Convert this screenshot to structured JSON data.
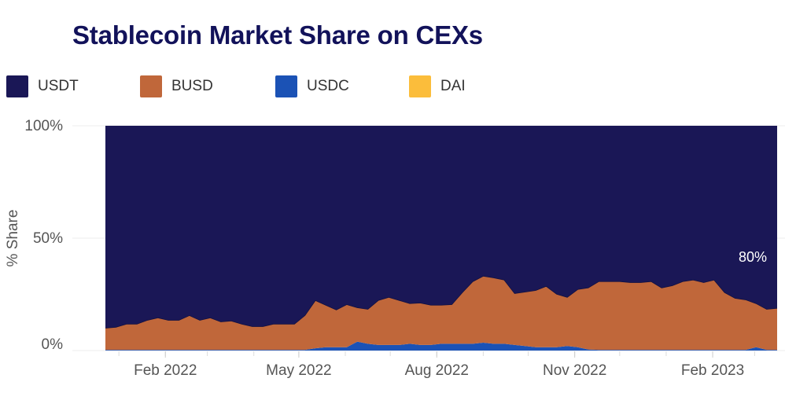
{
  "chart_data": {
    "type": "area",
    "stacked": true,
    "normalized": true,
    "title": "Stablecoin Market Share on CEXs",
    "ylabel": "% Share",
    "xlabel": "",
    "ylim": [
      0,
      100
    ],
    "yticks": [
      "0%",
      "50%",
      "100%"
    ],
    "xticks": [
      {
        "date": "2022-02-01",
        "label": "Feb 2022"
      },
      {
        "date": "2022-05-01",
        "label": "May 2022"
      },
      {
        "date": "2022-08-01",
        "label": "Aug 2022"
      },
      {
        "date": "2022-11-01",
        "label": "Nov 2022"
      },
      {
        "date": "2023-02-01",
        "label": "Feb 2023"
      }
    ],
    "grid": true,
    "legend_position": "top-left",
    "annotation": "80%",
    "x": [
      "2021-12-23",
      "2021-12-30",
      "2022-01-06",
      "2022-01-13",
      "2022-01-20",
      "2022-01-27",
      "2022-02-03",
      "2022-02-10",
      "2022-02-17",
      "2022-02-24",
      "2022-03-03",
      "2022-03-10",
      "2022-03-17",
      "2022-03-24",
      "2022-03-31",
      "2022-04-07",
      "2022-04-14",
      "2022-04-21",
      "2022-04-28",
      "2022-05-05",
      "2022-05-12",
      "2022-05-19",
      "2022-05-26",
      "2022-06-02",
      "2022-06-09",
      "2022-06-16",
      "2022-06-23",
      "2022-06-30",
      "2022-07-07",
      "2022-07-14",
      "2022-07-21",
      "2022-07-28",
      "2022-08-04",
      "2022-08-11",
      "2022-08-18",
      "2022-08-25",
      "2022-09-01",
      "2022-09-08",
      "2022-09-15",
      "2022-09-22",
      "2022-09-29",
      "2022-10-06",
      "2022-10-13",
      "2022-10-20",
      "2022-10-27",
      "2022-11-03",
      "2022-11-10",
      "2022-11-17",
      "2022-11-24",
      "2022-12-01",
      "2022-12-08",
      "2022-12-15",
      "2022-12-22",
      "2022-12-29",
      "2023-01-05",
      "2023-01-12",
      "2023-01-19",
      "2023-01-26",
      "2023-02-02",
      "2023-02-09",
      "2023-02-16",
      "2023-02-23",
      "2023-03-02",
      "2023-03-09",
      "2023-03-16"
    ],
    "series": [
      {
        "name": "USDT",
        "color": "#1a1756",
        "values": [
          89.9,
          89.5,
          88.1,
          88.1,
          86.4,
          85.3,
          86.4,
          86.4,
          84.3,
          86.4,
          85.3,
          87.1,
          86.7,
          88.1,
          89.2,
          89.2,
          88.1,
          88.1,
          88.1,
          84.3,
          77.6,
          79.7,
          81.8,
          79.4,
          80.8,
          81.5,
          77.6,
          76.2,
          77.6,
          79.0,
          78.7,
          79.7,
          79.7,
          79.4,
          74.1,
          69.2,
          66.8,
          67.5,
          68.5,
          74.5,
          73.8,
          73.1,
          71.3,
          74.8,
          76.2,
          72.7,
          72.0,
          69.2,
          69.2,
          69.2,
          69.6,
          69.6,
          69.2,
          72.0,
          71.0,
          69.2,
          68.5,
          69.6,
          68.5,
          74.1,
          76.6,
          77.3,
          79.0,
          81.5,
          81.1
        ]
      },
      {
        "name": "BUSD",
        "color": "#c0673a",
        "values": [
          9.8,
          10.2,
          11.6,
          11.6,
          13.3,
          14.4,
          13.3,
          13.3,
          15.4,
          13.3,
          14.4,
          12.6,
          13.0,
          11.6,
          10.5,
          10.5,
          11.6,
          11.6,
          11.6,
          15.4,
          21.4,
          18.8,
          16.7,
          19.1,
          15.2,
          15.5,
          19.9,
          21.3,
          19.9,
          18.0,
          18.8,
          17.8,
          17.3,
          17.6,
          22.9,
          27.8,
          29.7,
          29.5,
          28.5,
          23.0,
          24.2,
          25.4,
          27.2,
          23.7,
          21.8,
          25.8,
          27.5,
          30.5,
          30.5,
          30.5,
          30.1,
          30.1,
          30.5,
          27.7,
          28.7,
          30.5,
          31.2,
          30.1,
          31.2,
          25.6,
          23.1,
          22.4,
          19.5,
          18.2,
          18.6
        ]
      },
      {
        "name": "USDC",
        "color": "#1b52b5",
        "values": [
          0.3,
          0.3,
          0.3,
          0.3,
          0.3,
          0.3,
          0.3,
          0.3,
          0.3,
          0.3,
          0.3,
          0.3,
          0.3,
          0.3,
          0.3,
          0.3,
          0.3,
          0.3,
          0.3,
          0.3,
          1.0,
          1.5,
          1.5,
          1.5,
          4.0,
          3.0,
          2.5,
          2.5,
          2.5,
          3.0,
          2.5,
          2.5,
          3.0,
          3.0,
          3.0,
          3.0,
          3.5,
          3.0,
          3.0,
          2.5,
          2.0,
          1.5,
          1.5,
          1.5,
          2.0,
          1.5,
          0.5,
          0.3,
          0.3,
          0.3,
          0.3,
          0.3,
          0.3,
          0.3,
          0.3,
          0.3,
          0.3,
          0.3,
          0.3,
          0.3,
          0.3,
          0.3,
          1.5,
          0.3,
          0.3
        ]
      },
      {
        "name": "DAI",
        "color": "#fbbd3b",
        "values": [
          0,
          0,
          0,
          0,
          0,
          0,
          0,
          0,
          0,
          0,
          0,
          0,
          0,
          0,
          0,
          0,
          0,
          0,
          0,
          0,
          0,
          0,
          0,
          0,
          0,
          0,
          0,
          0,
          0,
          0,
          0,
          0,
          0,
          0,
          0,
          0,
          0,
          0,
          0,
          0,
          0,
          0,
          0,
          0,
          0,
          0,
          0,
          0,
          0,
          0,
          0,
          0,
          0,
          0,
          0,
          0,
          0,
          0,
          0,
          0,
          0,
          0,
          0,
          0,
          0
        ]
      }
    ]
  }
}
